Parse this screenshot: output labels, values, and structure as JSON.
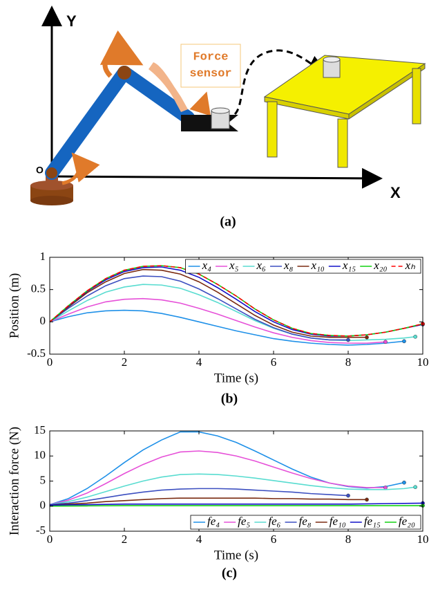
{
  "diagram": {
    "y_axis": "Y",
    "x_axis": "X",
    "origin": "O",
    "sensor_label": [
      "Force",
      "sensor"
    ],
    "caption": "(a)"
  },
  "chart_data": [
    {
      "type": "line",
      "caption": "(b)",
      "x_label": "Time (s)",
      "y_label": "Position (m)",
      "xlim": [
        0,
        10
      ],
      "xticks": [
        0,
        2,
        4,
        6,
        8,
        10
      ],
      "ylim": [
        -0.5,
        1
      ],
      "yticks": [
        -0.5,
        0,
        0.5,
        1
      ],
      "legend": "upper right",
      "endpoint_markers": true,
      "series": [
        {
          "name": "x₄",
          "color": "#1e90e8",
          "x": [
            0,
            0.5,
            1,
            1.5,
            2,
            2.5,
            3,
            3.5,
            4,
            4.5,
            5,
            5.5,
            6,
            6.5,
            7,
            7.5,
            8,
            8.5,
            9,
            9.5
          ],
          "values": [
            0,
            0.08,
            0.14,
            0.17,
            0.18,
            0.17,
            0.13,
            0.07,
            0,
            -0.07,
            -0.14,
            -0.2,
            -0.26,
            -0.3,
            -0.33,
            -0.35,
            -0.36,
            -0.35,
            -0.33,
            -0.3
          ]
        },
        {
          "name": "x₅",
          "color": "#e650d8",
          "x": [
            0,
            0.5,
            1,
            1.5,
            2,
            2.5,
            3,
            3.5,
            4,
            4.5,
            5,
            5.5,
            6,
            6.5,
            7,
            7.5,
            8,
            8.5,
            9
          ],
          "values": [
            0,
            0.12,
            0.23,
            0.31,
            0.35,
            0.36,
            0.34,
            0.29,
            0.21,
            0.12,
            0.02,
            -0.08,
            -0.17,
            -0.24,
            -0.29,
            -0.32,
            -0.33,
            -0.33,
            -0.31
          ]
        },
        {
          "name": "x₆",
          "color": "#58dcd0",
          "x": [
            0,
            0.5,
            1,
            1.5,
            2,
            2.5,
            3,
            3.5,
            4,
            4.5,
            5,
            5.5,
            6,
            6.5,
            7,
            7.5,
            8,
            8.5,
            9,
            9.5,
            9.8
          ],
          "values": [
            0,
            0.17,
            0.33,
            0.46,
            0.54,
            0.58,
            0.57,
            0.52,
            0.42,
            0.3,
            0.16,
            0.02,
            -0.1,
            -0.19,
            -0.25,
            -0.28,
            -0.29,
            -0.28,
            -0.27,
            -0.25,
            -0.23
          ]
        },
        {
          "name": "x₈",
          "color": "#3c4fc0",
          "x": [
            0,
            0.5,
            1,
            1.5,
            2,
            2.5,
            3,
            3.5,
            4,
            4.5,
            5,
            5.5,
            6,
            6.5,
            7,
            7.5,
            8
          ],
          "values": [
            0,
            0.21,
            0.4,
            0.56,
            0.67,
            0.71,
            0.7,
            0.63,
            0.51,
            0.36,
            0.2,
            0.04,
            -0.09,
            -0.19,
            -0.25,
            -0.28,
            -0.28
          ]
        },
        {
          "name": "x₁₀",
          "color": "#7a2a10",
          "x": [
            0,
            0.5,
            1,
            1.5,
            2,
            2.5,
            3,
            3.5,
            4,
            4.5,
            5,
            5.5,
            6,
            6.5,
            7,
            7.5,
            8,
            8.5
          ],
          "values": [
            0,
            0.23,
            0.45,
            0.62,
            0.75,
            0.81,
            0.8,
            0.74,
            0.62,
            0.46,
            0.28,
            0.1,
            -0.05,
            -0.16,
            -0.22,
            -0.24,
            -0.24,
            -0.24
          ]
        },
        {
          "name": "x₁₅",
          "color": "#1010c8",
          "x": [
            0,
            0.5,
            1,
            1.5,
            2,
            2.5,
            3,
            3.5,
            4,
            4.5,
            5,
            5.5,
            6,
            6.5,
            7,
            7.5,
            8,
            8.5,
            9,
            9.5,
            10
          ],
          "values": [
            0,
            0.24,
            0.47,
            0.65,
            0.78,
            0.84,
            0.85,
            0.8,
            0.69,
            0.53,
            0.35,
            0.16,
            0,
            -0.12,
            -0.19,
            -0.22,
            -0.22,
            -0.2,
            -0.16,
            -0.1,
            -0.04
          ]
        },
        {
          "name": "x₂₀",
          "color": "#10d010",
          "x": [
            0,
            0.5,
            1,
            1.5,
            2,
            2.5,
            3,
            3.5,
            4,
            4.5,
            5,
            5.5,
            6,
            6.5,
            7,
            7.5,
            8,
            8.5,
            9,
            9.5,
            10
          ],
          "values": [
            0,
            0.25,
            0.48,
            0.67,
            0.8,
            0.86,
            0.87,
            0.84,
            0.74,
            0.58,
            0.4,
            0.2,
            0.03,
            -0.1,
            -0.18,
            -0.21,
            -0.22,
            -0.2,
            -0.16,
            -0.1,
            -0.03
          ]
        },
        {
          "name": "xₕ",
          "color": "#ff0000",
          "dashed": true,
          "x": [
            0,
            0.5,
            1,
            1.5,
            2,
            2.5,
            3,
            3.5,
            4,
            4.5,
            5,
            5.5,
            6,
            6.5,
            7,
            7.5,
            8,
            8.5,
            9,
            9.5,
            10
          ],
          "values": [
            0,
            0.25,
            0.48,
            0.67,
            0.8,
            0.86,
            0.87,
            0.84,
            0.74,
            0.58,
            0.4,
            0.2,
            0.03,
            -0.1,
            -0.18,
            -0.21,
            -0.22,
            -0.2,
            -0.16,
            -0.1,
            -0.03
          ]
        }
      ]
    },
    {
      "type": "line",
      "caption": "(c)",
      "x_label": "Time (s)",
      "y_label": "Interaction force (N)",
      "xlim": [
        0,
        10
      ],
      "xticks": [
        0,
        2,
        4,
        6,
        8,
        10
      ],
      "ylim": [
        -5,
        15
      ],
      "yticks": [
        -5,
        0,
        5,
        10,
        15
      ],
      "legend": "lower right",
      "endpoint_markers": true,
      "series": [
        {
          "name": "fe₄",
          "color": "#1e90e8",
          "x": [
            0,
            0.5,
            1,
            1.5,
            2,
            2.5,
            3,
            3.5,
            4,
            4.5,
            5,
            5.5,
            6,
            6.5,
            7,
            7.5,
            8,
            8.5,
            9,
            9.5
          ],
          "values": [
            0.3,
            1.5,
            3.5,
            6,
            8.7,
            11.2,
            13.2,
            14.8,
            14.8,
            14,
            12.7,
            11,
            9.2,
            7.4,
            5.8,
            4.6,
            3.9,
            3.6,
            3.9,
            4.7
          ]
        },
        {
          "name": "fe₅",
          "color": "#e650d8",
          "x": [
            0,
            0.5,
            1,
            1.5,
            2,
            2.5,
            3,
            3.5,
            4,
            4.5,
            5,
            5.5,
            6,
            6.5,
            7,
            7.5,
            8,
            8.5,
            9
          ],
          "values": [
            0.3,
            1.2,
            2.6,
            4.5,
            6.5,
            8.3,
            9.8,
            10.8,
            11,
            10.7,
            10,
            9,
            7.8,
            6.6,
            5.5,
            4.6,
            4,
            3.7,
            3.7
          ]
        },
        {
          "name": "fe₆",
          "color": "#58dcd0",
          "x": [
            0,
            0.5,
            1,
            1.5,
            2,
            2.5,
            3,
            3.5,
            4,
            4.5,
            5,
            5.5,
            6,
            6.5,
            7,
            7.5,
            8,
            8.5,
            9,
            9.5,
            9.8
          ],
          "values": [
            0.3,
            0.9,
            1.8,
            2.9,
            4,
            5,
            5.8,
            6.3,
            6.4,
            6.3,
            6,
            5.6,
            5.1,
            4.6,
            4.1,
            3.7,
            3.4,
            3.3,
            3.3,
            3.5,
            3.8
          ]
        },
        {
          "name": "fe₈",
          "color": "#3c4fc0",
          "x": [
            0,
            0.5,
            1,
            1.5,
            2,
            2.5,
            3,
            3.5,
            4,
            4.5,
            5,
            5.5,
            6,
            6.5,
            7,
            7.5,
            8
          ],
          "values": [
            0.3,
            0.6,
            1.1,
            1.7,
            2.3,
            2.8,
            3.2,
            3.4,
            3.5,
            3.5,
            3.4,
            3.2,
            3,
            2.8,
            2.5,
            2.3,
            2.1
          ]
        },
        {
          "name": "fe₁₀",
          "color": "#7a2a10",
          "x": [
            0,
            0.5,
            1,
            1.5,
            2,
            2.5,
            3,
            3.5,
            4,
            4.5,
            5,
            5.5,
            6,
            6.5,
            7,
            7.5,
            8,
            8.5
          ],
          "values": [
            0.2,
            0.4,
            0.6,
            0.9,
            1.1,
            1.3,
            1.5,
            1.6,
            1.6,
            1.6,
            1.6,
            1.6,
            1.5,
            1.5,
            1.4,
            1.4,
            1.3,
            1.3
          ]
        },
        {
          "name": "fe₁₅",
          "color": "#1010c8",
          "x": [
            0,
            1,
            2,
            3,
            4,
            5,
            6,
            7,
            8,
            9,
            10
          ],
          "values": [
            0.2,
            0.3,
            0.4,
            0.4,
            0.4,
            0.4,
            0.4,
            0.4,
            0.4,
            0.5,
            0.6
          ]
        },
        {
          "name": "fe₂₀",
          "color": "#10d010",
          "x": [
            0,
            1,
            2,
            3,
            4,
            5,
            6,
            7,
            8,
            9,
            10
          ],
          "values": [
            0,
            0.05,
            0.1,
            0.1,
            0.1,
            0.1,
            0.1,
            0.1,
            0.1,
            0.1,
            0.1
          ]
        }
      ]
    }
  ]
}
